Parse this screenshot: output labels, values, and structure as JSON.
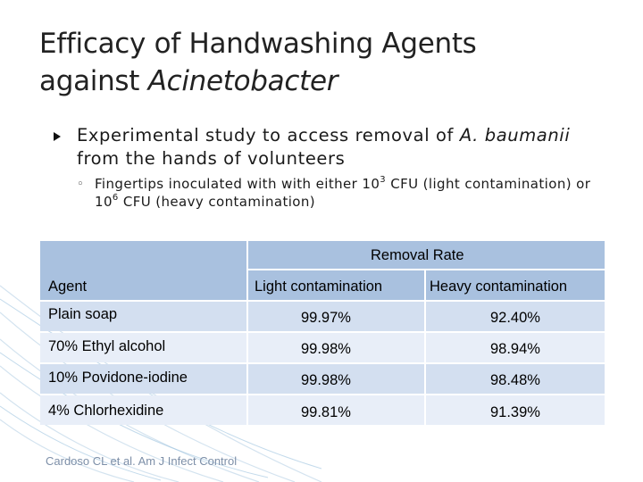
{
  "title": {
    "line1": "Efficacy of Handwashing Agents",
    "line2_prefix": "against ",
    "line2_italic": "Acinetobacter"
  },
  "bullet1": {
    "text_before": "Experimental study to access removal of ",
    "italic": "A. baumanii",
    "text_after": " from the hands of volunteers"
  },
  "bullet2": {
    "marker": "◦",
    "part1": "Fingertips inoculated with with either 10",
    "sup1": "3",
    "part2": " CFU (light contamination) or 10",
    "sup2": "6",
    "part3": " CFU (heavy contamination)"
  },
  "table": {
    "group_header": "Removal Rate",
    "headers": {
      "agent": "Agent",
      "light": "Light contamination",
      "heavy": "Heavy contamination"
    },
    "rows": [
      {
        "agent": "Plain soap",
        "light": "99.97%",
        "heavy": "92.40%"
      },
      {
        "agent": "70% Ethyl alcohol",
        "light": "99.98%",
        "heavy": "98.94%"
      },
      {
        "agent": "10% Povidone-iodine",
        "light": "99.98%",
        "heavy": "98.48%"
      },
      {
        "agent": "4% Chlorhexidine",
        "light": "99.81%",
        "heavy": "91.39%"
      }
    ]
  },
  "footnote": "Cardoso CL et al. Am J Infect Control"
}
